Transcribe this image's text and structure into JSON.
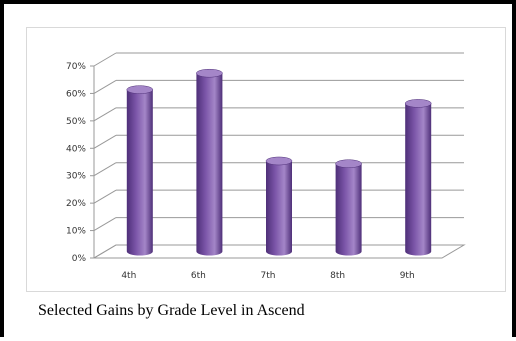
{
  "caption": "Selected Gains by Grade Level in Ascend",
  "chart_data": {
    "type": "bar",
    "style": "3d-cylinder",
    "title": "",
    "xlabel": "",
    "ylabel": "",
    "categories": [
      "4th",
      "6th",
      "7th",
      "8th",
      "9th"
    ],
    "values": [
      59,
      65,
      33,
      32,
      54
    ],
    "unit": "%",
    "ylim": [
      0,
      70
    ],
    "yticks": [
      "0%",
      "10%",
      "20%",
      "30%",
      "40%",
      "50%",
      "60%",
      "70%"
    ],
    "grid": true,
    "legend": "none",
    "colors": {
      "bar": "#7b55a8",
      "bar_dark": "#4e2f78",
      "bar_light": "#a486c8",
      "gridline": "#999999"
    }
  }
}
